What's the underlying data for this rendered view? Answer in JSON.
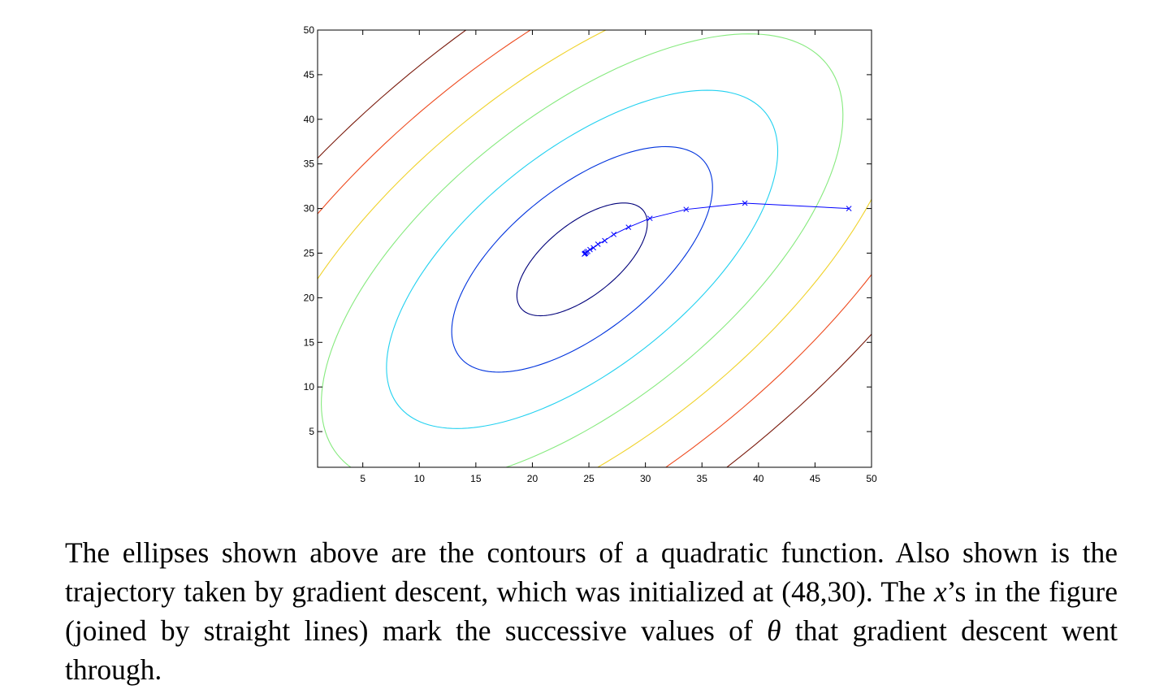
{
  "chart_data": {
    "type": "line",
    "title": "",
    "xlabel": "",
    "ylabel": "",
    "xlim": [
      1,
      50
    ],
    "ylim": [
      1,
      50
    ],
    "grid": false,
    "x_ticks": [
      5,
      10,
      15,
      20,
      25,
      30,
      35,
      40,
      45,
      50
    ],
    "y_ticks": [
      5,
      10,
      15,
      20,
      25,
      30,
      35,
      40,
      45,
      50
    ],
    "contours": [
      {
        "level": 1,
        "color": "#00007a"
      },
      {
        "level": 2,
        "color": "#0033dd"
      },
      {
        "level": 3,
        "color": "#22d1f0"
      },
      {
        "level": 4,
        "color": "#86ea7e"
      },
      {
        "level": 5,
        "color": "#f0d22a"
      },
      {
        "level": 6,
        "color": "#ee4a1e"
      },
      {
        "level": 7,
        "color": "#7a1a0c"
      }
    ],
    "trajectory": {
      "color": "#0000ff",
      "marker": "x",
      "points": [
        [
          48.0,
          30.0
        ],
        [
          38.8,
          30.6
        ],
        [
          33.6,
          29.9
        ],
        [
          30.4,
          28.9
        ],
        [
          28.5,
          27.9
        ],
        [
          27.2,
          27.1
        ],
        [
          26.4,
          26.4
        ],
        [
          25.8,
          26.0
        ],
        [
          25.4,
          25.6
        ],
        [
          25.1,
          25.4
        ],
        [
          24.9,
          25.2
        ],
        [
          24.8,
          25.1
        ],
        [
          24.7,
          25.0
        ],
        [
          24.65,
          24.95
        ],
        [
          24.6,
          24.9
        ]
      ]
    }
  },
  "caption": {
    "p1": "The ellipses shown above are the contours of a quadratic function.  Also shown is the trajectory taken by gradient descent, which was initialized at (48,30).  The ",
    "x_symbol": "x",
    "p2": "’s in the figure (joined by straight lines) mark the successive values of ",
    "theta_symbol": "θ",
    "p3": " that gradient descent went through."
  }
}
